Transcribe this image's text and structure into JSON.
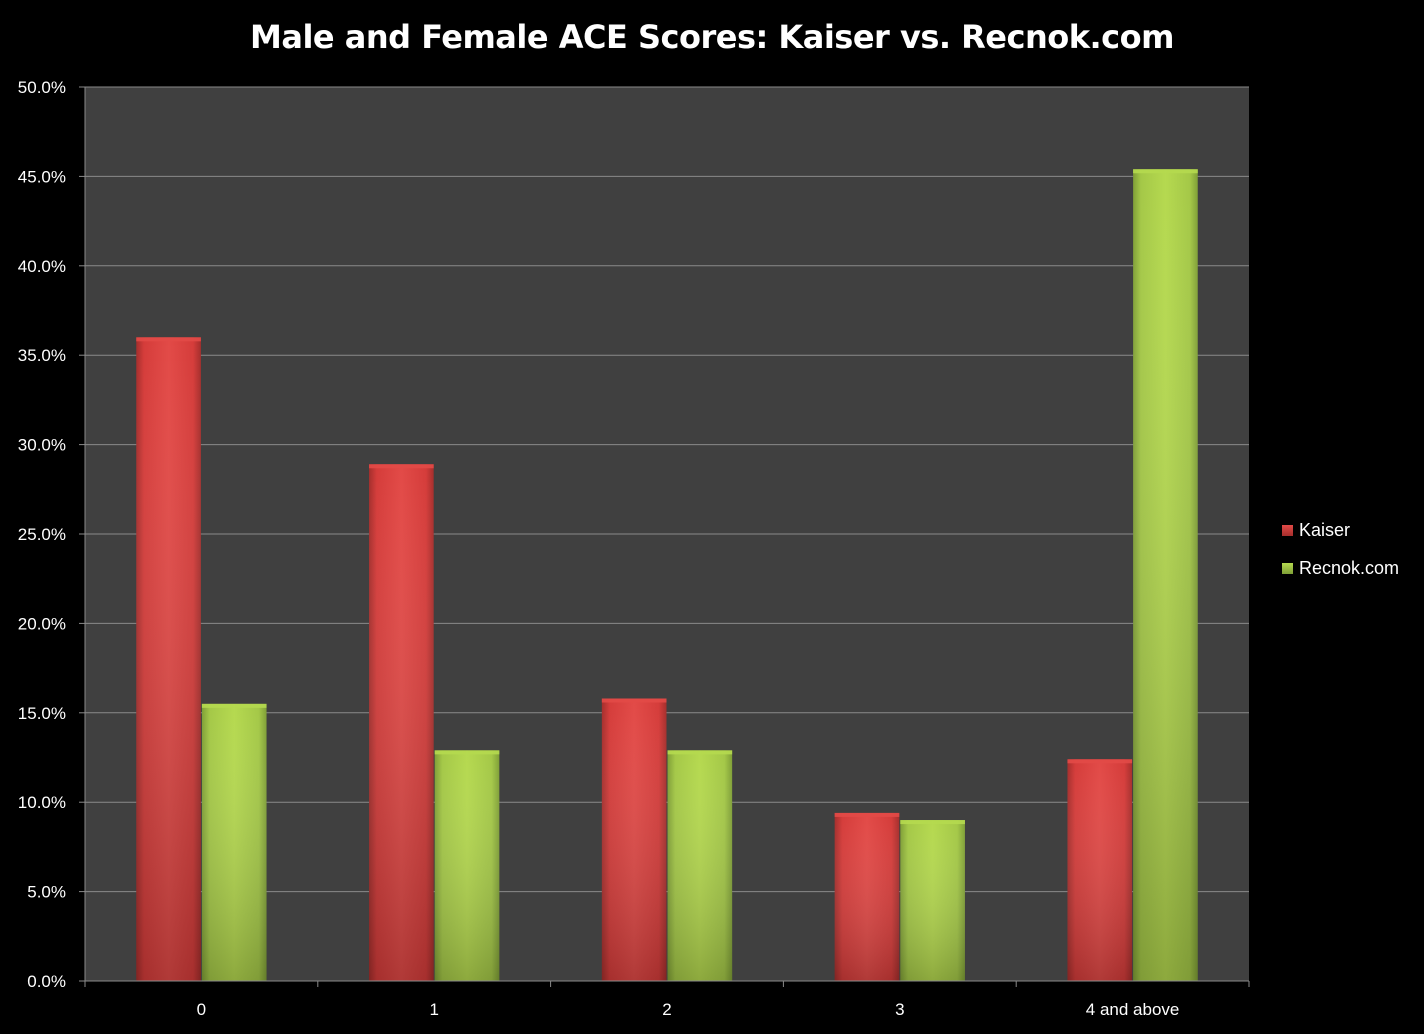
{
  "chart_data": {
    "type": "bar",
    "title": "Male and Female ACE Scores: Kaiser vs. Recnok.com",
    "xlabel": "",
    "ylabel": "",
    "categories": [
      "0",
      "1",
      "2",
      "3",
      "4 and above"
    ],
    "series": [
      {
        "name": "Kaiser",
        "values": [
          36.0,
          28.9,
          15.8,
          9.4,
          12.4
        ],
        "color": "#d53c3a",
        "color_light": "#e24a47",
        "color_dark": "#a52e2c"
      },
      {
        "name": "Recnok.com",
        "values": [
          15.5,
          12.9,
          12.9,
          9.0,
          45.4
        ],
        "color": "#a4c847",
        "color_light": "#b5d94f",
        "color_dark": "#7f9f36"
      }
    ],
    "ylim": [
      0,
      50
    ],
    "yticks": [
      "0.0%",
      "5.0%",
      "10.0%",
      "15.0%",
      "20.0%",
      "25.0%",
      "30.0%",
      "35.0%",
      "40.0%",
      "45.0%",
      "50.0%"
    ],
    "grid": true,
    "legend": "right",
    "plot_background": "#404040",
    "background": "#000000"
  }
}
